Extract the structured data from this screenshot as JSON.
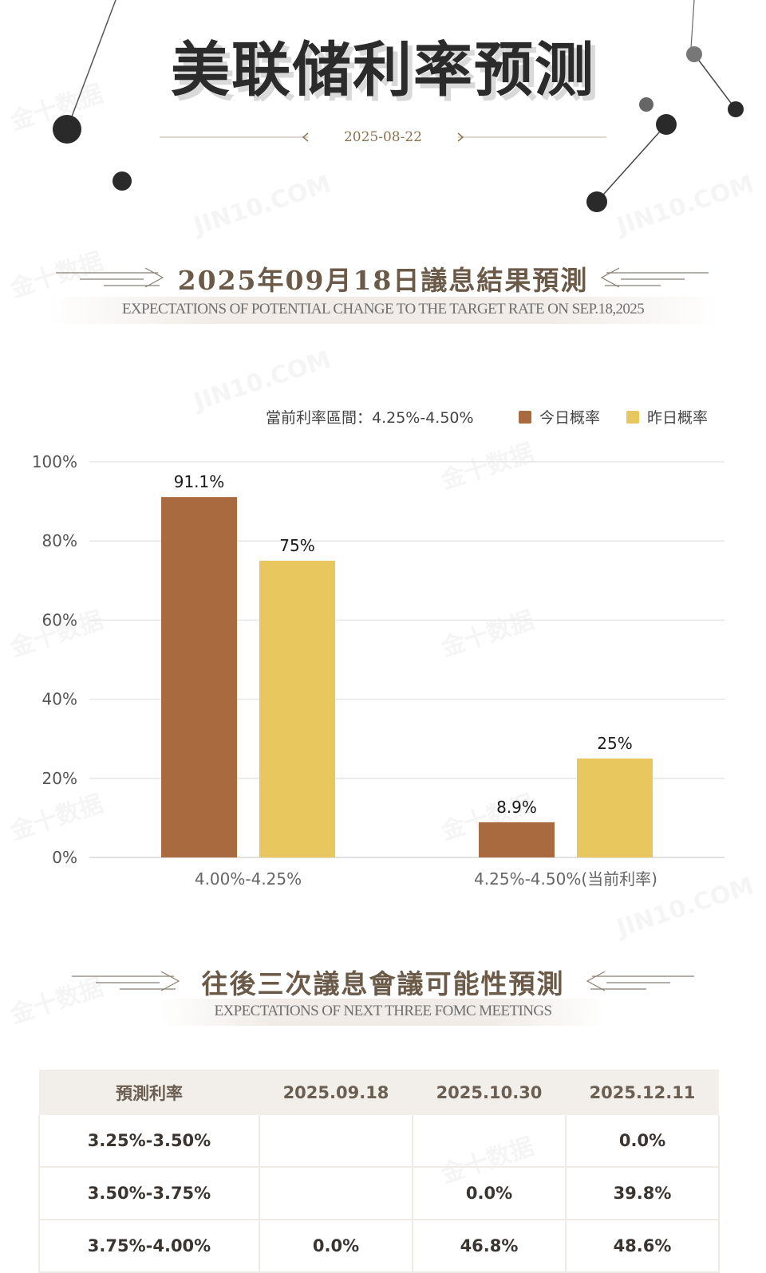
{
  "page": {
    "title": "美联储利率预测",
    "date": "2025-08-22"
  },
  "section1": {
    "title": "2025年09月18日議息結果預測",
    "subtitle": "EXPECTATIONS OF POTENTIAL CHANGE TO THE TARGET RATE ON SEP.18,2025"
  },
  "legend": {
    "current_range": "當前利率區間：4.25%-4.50%",
    "today": "今日概率",
    "yesterday": "昨日概率"
  },
  "chart_data": {
    "type": "bar",
    "categories": [
      "4.00%-4.25%",
      "4.25%-4.50%(当前利率)"
    ],
    "series": [
      {
        "name": "今日概率",
        "values": [
          91.1,
          8.9
        ],
        "labels": [
          "91.1%",
          "8.9%"
        ],
        "color": "#a86a3e"
      },
      {
        "name": "昨日概率",
        "values": [
          75,
          25
        ],
        "labels": [
          "75%",
          "25%"
        ],
        "color": "#e9c75f"
      }
    ],
    "ylim": [
      0,
      100
    ],
    "yticks": [
      "0%",
      "20%",
      "40%",
      "60%",
      "80%",
      "100%"
    ],
    "grid": true,
    "legend_position": "top-right"
  },
  "section2": {
    "title": "往後三次議息會議可能性預測",
    "subtitle": "EXPECTATIONS OF NEXT THREE FOMC MEETINGS"
  },
  "table": {
    "headers": [
      "預測利率",
      "2025.09.18",
      "2025.10.30",
      "2025.12.11"
    ],
    "rows": [
      [
        "3.25%-3.50%",
        "",
        "",
        "0.0%"
      ],
      [
        "3.50%-3.75%",
        "",
        "0.0%",
        "39.8%"
      ],
      [
        "3.75%-4.00%",
        "0.0%",
        "46.8%",
        "48.6%"
      ]
    ]
  },
  "watermark": {
    "cn": "金十数据",
    "en": "JIN10.COM"
  },
  "colors": {
    "today": "#a86a3e",
    "yesterday": "#e9c75f",
    "title_brown": "#6b5a48"
  }
}
